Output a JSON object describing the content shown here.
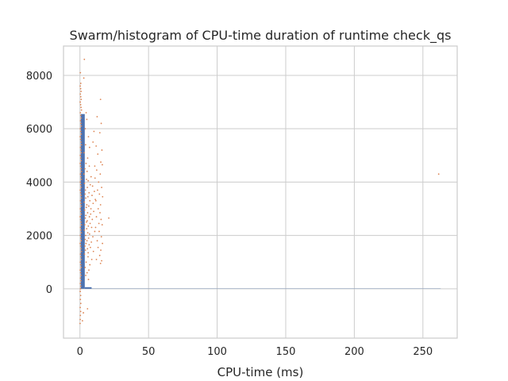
{
  "chart_data": {
    "type": "scatter",
    "title": "Swarm/histogram of CPU-time duration of runtime check_qs",
    "xlabel": "CPU-time (ms)",
    "ylabel": "",
    "xlim": [
      -12,
      275
    ],
    "ylim": [
      -1850,
      9100
    ],
    "grid": true,
    "legend": "none",
    "x_ticks": [
      0,
      50,
      100,
      150,
      200,
      250
    ],
    "y_ticks": [
      0,
      2000,
      4000,
      6000,
      8000
    ],
    "series": [
      {
        "kind": "histogram",
        "color": "#4c72b0",
        "bins": [
          {
            "x0": 0.5,
            "x1": 3.5,
            "count": 6550
          },
          {
            "x0": 3.5,
            "x1": 8.5,
            "count": 60
          },
          {
            "x0": 8.5,
            "x1": 260,
            "count": 3
          },
          {
            "x0": 260,
            "x1": 263,
            "count": 5
          }
        ]
      },
      {
        "kind": "swarm",
        "color": "#dd8452",
        "points": [
          [
            0.3,
            8100
          ],
          [
            0.6,
            7700
          ],
          [
            0.2,
            7600
          ],
          [
            0.5,
            7500
          ],
          [
            0.8,
            7400
          ],
          [
            0.3,
            7300
          ],
          [
            0.6,
            7200
          ],
          [
            0.9,
            7100
          ],
          [
            0.2,
            7000
          ],
          [
            0.5,
            6900
          ],
          [
            0.8,
            6800
          ],
          [
            1.1,
            6700
          ],
          [
            0.3,
            6600
          ],
          [
            0.6,
            6500
          ],
          [
            0.9,
            6400
          ],
          [
            0.4,
            6300
          ],
          [
            0.7,
            6200
          ],
          [
            1.0,
            6100
          ],
          [
            0.3,
            6000
          ],
          [
            0.6,
            5900
          ],
          [
            0.9,
            5800
          ],
          [
            0.2,
            5700
          ],
          [
            0.5,
            5600
          ],
          [
            0.8,
            5500
          ],
          [
            1.1,
            5400
          ],
          [
            0.4,
            5300
          ],
          [
            0.7,
            5200
          ],
          [
            1.0,
            5100
          ],
          [
            0.3,
            5000
          ],
          [
            0.6,
            4900
          ],
          [
            0.9,
            4800
          ],
          [
            0.2,
            4700
          ],
          [
            0.5,
            4600
          ],
          [
            0.8,
            4500
          ],
          [
            1.1,
            4400
          ],
          [
            0.4,
            4300
          ],
          [
            0.7,
            4200
          ],
          [
            1.0,
            4100
          ],
          [
            0.3,
            4000
          ],
          [
            0.6,
            3900
          ],
          [
            0.9,
            3800
          ],
          [
            0.2,
            3700
          ],
          [
            0.5,
            3600
          ],
          [
            0.8,
            3500
          ],
          [
            1.1,
            3400
          ],
          [
            0.4,
            3300
          ],
          [
            0.7,
            3200
          ],
          [
            1.0,
            3100
          ],
          [
            0.3,
            3000
          ],
          [
            0.6,
            2900
          ],
          [
            0.9,
            2800
          ],
          [
            0.2,
            2700
          ],
          [
            0.5,
            2600
          ],
          [
            0.8,
            2500
          ],
          [
            1.1,
            2400
          ],
          [
            0.4,
            2300
          ],
          [
            0.7,
            2200
          ],
          [
            1.0,
            2100
          ],
          [
            0.3,
            2000
          ],
          [
            0.6,
            1900
          ],
          [
            0.9,
            1800
          ],
          [
            0.2,
            1700
          ],
          [
            0.5,
            1600
          ],
          [
            0.8,
            1500
          ],
          [
            1.1,
            1400
          ],
          [
            0.4,
            1300
          ],
          [
            0.7,
            1200
          ],
          [
            1.0,
            1100
          ],
          [
            0.3,
            1000
          ],
          [
            0.6,
            900
          ],
          [
            0.9,
            800
          ],
          [
            0.2,
            700
          ],
          [
            0.5,
            600
          ],
          [
            0.8,
            500
          ],
          [
            0.4,
            400
          ],
          [
            0.7,
            300
          ],
          [
            0.3,
            200
          ],
          [
            0.6,
            100
          ],
          [
            0.4,
            0
          ],
          [
            0.2,
            -100
          ],
          [
            0.5,
            -250
          ],
          [
            0.3,
            -400
          ],
          [
            0.6,
            -550
          ],
          [
            0.2,
            -700
          ],
          [
            0.5,
            -850
          ],
          [
            0.3,
            -1000
          ],
          [
            0.2,
            -1150
          ],
          [
            0.1,
            -1300
          ],
          [
            3.2,
            8600
          ],
          [
            2.8,
            7900
          ],
          [
            4.5,
            6600
          ],
          [
            5.0,
            6350
          ],
          [
            3.8,
            6000
          ],
          [
            6.2,
            5700
          ],
          [
            4.1,
            5400
          ],
          [
            7.0,
            5300
          ],
          [
            3.0,
            5100
          ],
          [
            5.6,
            4900
          ],
          [
            4.4,
            4700
          ],
          [
            6.8,
            4600
          ],
          [
            3.6,
            4500
          ],
          [
            5.2,
            4400
          ],
          [
            2.9,
            4300
          ],
          [
            8.1,
            4200
          ],
          [
            4.8,
            4100
          ],
          [
            6.0,
            4050
          ],
          [
            3.3,
            3950
          ],
          [
            7.5,
            3900
          ],
          [
            9.2,
            3850
          ],
          [
            5.4,
            3800
          ],
          [
            4.0,
            3700
          ],
          [
            10.5,
            3650
          ],
          [
            6.6,
            3600
          ],
          [
            3.7,
            3550
          ],
          [
            8.8,
            3500
          ],
          [
            5.8,
            3450
          ],
          [
            4.2,
            3400
          ],
          [
            11.2,
            3350
          ],
          [
            7.2,
            3300
          ],
          [
            3.1,
            3250
          ],
          [
            9.6,
            3200
          ],
          [
            5.0,
            3150
          ],
          [
            6.4,
            3100
          ],
          [
            4.6,
            3050
          ],
          [
            8.0,
            3000
          ],
          [
            3.4,
            2950
          ],
          [
            10.0,
            2900
          ],
          [
            5.6,
            2850
          ],
          [
            7.8,
            2800
          ],
          [
            4.3,
            2750
          ],
          [
            6.9,
            2700
          ],
          [
            3.9,
            2650
          ],
          [
            9.0,
            2600
          ],
          [
            5.3,
            2550
          ],
          [
            4.7,
            2500
          ],
          [
            7.4,
            2450
          ],
          [
            3.5,
            2400
          ],
          [
            6.1,
            2350
          ],
          [
            8.5,
            2300
          ],
          [
            4.9,
            2250
          ],
          [
            3.2,
            2200
          ],
          [
            10.8,
            2150
          ],
          [
            5.7,
            2100
          ],
          [
            7.0,
            2050
          ],
          [
            4.1,
            2000
          ],
          [
            9.4,
            1950
          ],
          [
            6.3,
            1900
          ],
          [
            3.8,
            1850
          ],
          [
            5.1,
            1800
          ],
          [
            8.3,
            1750
          ],
          [
            4.4,
            1700
          ],
          [
            6.7,
            1650
          ],
          [
            3.6,
            1600
          ],
          [
            7.6,
            1550
          ],
          [
            5.5,
            1500
          ],
          [
            4.0,
            1450
          ],
          [
            9.8,
            1400
          ],
          [
            6.0,
            1350
          ],
          [
            3.3,
            1300
          ],
          [
            5.9,
            1200
          ],
          [
            8.6,
            1100
          ],
          [
            4.5,
            1000
          ],
          [
            7.2,
            900
          ],
          [
            3.7,
            800
          ],
          [
            6.5,
            700
          ],
          [
            5.2,
            600
          ],
          [
            4.2,
            500
          ],
          [
            6.2,
            350
          ],
          [
            15.0,
            7100
          ],
          [
            12.5,
            6450
          ],
          [
            15.5,
            6200
          ],
          [
            10.2,
            5900
          ],
          [
            14.5,
            5850
          ],
          [
            9.5,
            5500
          ],
          [
            11.8,
            5350
          ],
          [
            16.0,
            5200
          ],
          [
            13.0,
            5050
          ],
          [
            15.2,
            4750
          ],
          [
            10.8,
            4600
          ],
          [
            16.3,
            4650
          ],
          [
            12.2,
            4450
          ],
          [
            14.8,
            4300
          ],
          [
            11.0,
            4150
          ],
          [
            13.6,
            4000
          ],
          [
            15.8,
            3800
          ],
          [
            12.8,
            3700
          ],
          [
            14.2,
            3550
          ],
          [
            16.5,
            3450
          ],
          [
            11.6,
            3300
          ],
          [
            15.0,
            3150
          ],
          [
            13.3,
            3000
          ],
          [
            14.6,
            2850
          ],
          [
            12.0,
            2700
          ],
          [
            15.4,
            2600
          ],
          [
            21.0,
            2650
          ],
          [
            13.8,
            2450
          ],
          [
            16.2,
            2400
          ],
          [
            11.4,
            2300
          ],
          [
            14.0,
            2150
          ],
          [
            15.6,
            1950
          ],
          [
            12.6,
            1800
          ],
          [
            16.4,
            1700
          ],
          [
            13.2,
            1550
          ],
          [
            15.2,
            1450
          ],
          [
            14.4,
            1250
          ],
          [
            15.8,
            1050
          ],
          [
            15.0,
            950
          ],
          [
            12.0,
            1100
          ],
          [
            5.5,
            -750
          ],
          [
            2.5,
            -900
          ],
          [
            1.8,
            -1200
          ],
          [
            261.5,
            4300
          ]
        ]
      }
    ]
  }
}
